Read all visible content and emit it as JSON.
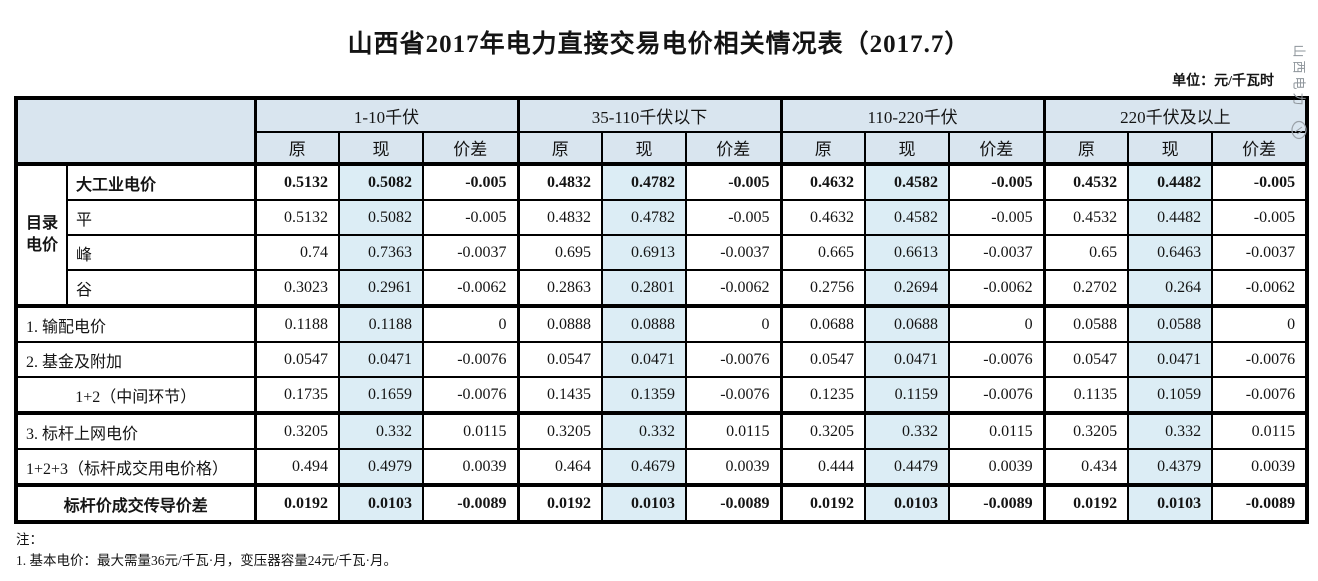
{
  "page": {
    "title": "山西省2017年电力直接交易电价相关情况表（2017.7）",
    "unit_label": "单位：元/千瓦时",
    "watermark_text": "山西电力",
    "notes": [
      "注：",
      "1. 基本电价：最大需量36元/千瓦·月，变压器容量24元/千瓦·月。"
    ]
  },
  "table": {
    "corner_label": "",
    "catalog_label": "目录\n电价",
    "groups": [
      {
        "label": "1-10千伏"
      },
      {
        "label": "35-110千伏以下"
      },
      {
        "label": "110-220千伏"
      },
      {
        "label": "220千伏及以上"
      }
    ],
    "sub_headers": [
      "原",
      "现",
      "价差"
    ],
    "colors": {
      "header_bg": "#d9e5ef",
      "current_column_bg": "#dcedf5",
      "border": "#000000"
    },
    "rows": [
      {
        "label": "大工业电价",
        "bold": true,
        "catalog": true,
        "section_start": true,
        "values": [
          "0.5132",
          "0.5082",
          "-0.005",
          "0.4832",
          "0.4782",
          "-0.005",
          "0.4632",
          "0.4582",
          "-0.005",
          "0.4532",
          "0.4482",
          "-0.005"
        ]
      },
      {
        "label": "平",
        "catalog": true,
        "values": [
          "0.5132",
          "0.5082",
          "-0.005",
          "0.4832",
          "0.4782",
          "-0.005",
          "0.4632",
          "0.4582",
          "-0.005",
          "0.4532",
          "0.4482",
          "-0.005"
        ]
      },
      {
        "label": "峰",
        "catalog": true,
        "values": [
          "0.74",
          "0.7363",
          "-0.0037",
          "0.695",
          "0.6913",
          "-0.0037",
          "0.665",
          "0.6613",
          "-0.0037",
          "0.65",
          "0.6463",
          "-0.0037"
        ]
      },
      {
        "label": "谷",
        "catalog": true,
        "values": [
          "0.3023",
          "0.2961",
          "-0.0062",
          "0.2863",
          "0.2801",
          "-0.0062",
          "0.2756",
          "0.2694",
          "-0.0062",
          "0.2702",
          "0.264",
          "-0.0062"
        ]
      },
      {
        "label": "1. 输配电价",
        "section_start": true,
        "values": [
          "0.1188",
          "0.1188",
          "0",
          "0.0888",
          "0.0888",
          "0",
          "0.0688",
          "0.0688",
          "0",
          "0.0588",
          "0.0588",
          "0"
        ]
      },
      {
        "label": "2. 基金及附加",
        "values": [
          "0.0547",
          "0.0471",
          "-0.0076",
          "0.0547",
          "0.0471",
          "-0.0076",
          "0.0547",
          "0.0471",
          "-0.0076",
          "0.0547",
          "0.0471",
          "-0.0076"
        ]
      },
      {
        "label": "1+2（中间环节）",
        "center": true,
        "values": [
          "0.1735",
          "0.1659",
          "-0.0076",
          "0.1435",
          "0.1359",
          "-0.0076",
          "0.1235",
          "0.1159",
          "-0.0076",
          "0.1135",
          "0.1059",
          "-0.0076"
        ]
      },
      {
        "label": "3. 标杆上网电价",
        "section_start": true,
        "values": [
          "0.3205",
          "0.332",
          "0.0115",
          "0.3205",
          "0.332",
          "0.0115",
          "0.3205",
          "0.332",
          "0.0115",
          "0.3205",
          "0.332",
          "0.0115"
        ]
      },
      {
        "label": "1+2+3（标杆成交用电价格）",
        "values": [
          "0.494",
          "0.4979",
          "0.0039",
          "0.464",
          "0.4679",
          "0.0039",
          "0.444",
          "0.4479",
          "0.0039",
          "0.434",
          "0.4379",
          "0.0039"
        ]
      },
      {
        "label": "标杆价成交传导价差",
        "bold": true,
        "center": true,
        "section_start": true,
        "values": [
          "0.0192",
          "0.0103",
          "-0.0089",
          "0.0192",
          "0.0103",
          "-0.0089",
          "0.0192",
          "0.0103",
          "-0.0089",
          "0.0192",
          "0.0103",
          "-0.0089"
        ]
      }
    ]
  }
}
